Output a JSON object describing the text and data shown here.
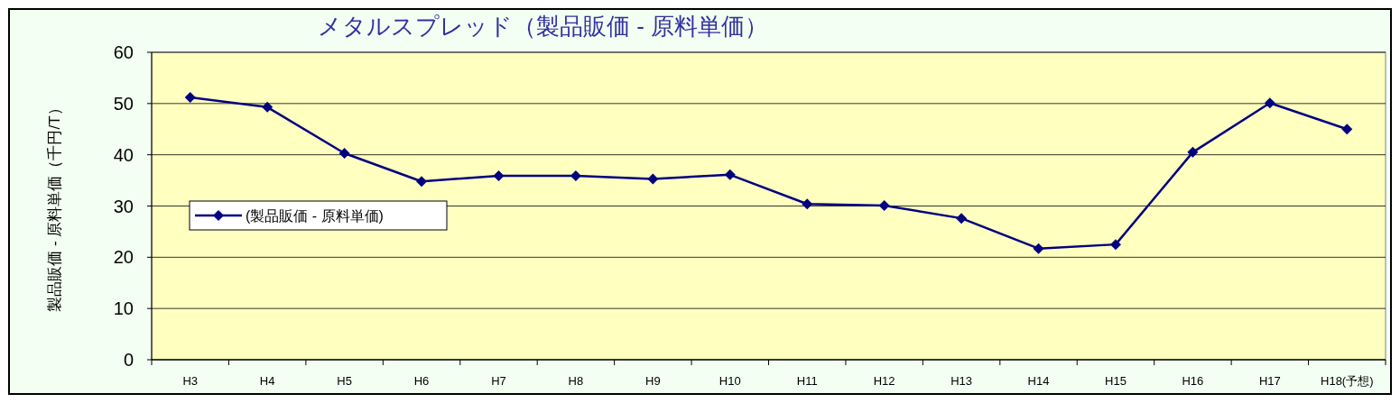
{
  "chart_data": {
    "type": "line",
    "title": "メタルスプレッド（製品販価 - 原料単価）",
    "ylabel": "製品販価 - 原料単価（千円/T）",
    "categories": [
      "H3",
      "H4",
      "H5",
      "H6",
      "H7",
      "H8",
      "H9",
      "H10",
      "H11",
      "H12",
      "H13",
      "H14",
      "H15",
      "H16",
      "H17",
      "H18(予想)"
    ],
    "series": [
      {
        "name": "(製品販価 - 原料単価)",
        "color": "#000080",
        "values": [
          51.2,
          49.3,
          40.3,
          34.8,
          35.9,
          35.9,
          35.3,
          36.1,
          30.4,
          30.1,
          27.6,
          21.7,
          22.5,
          40.5,
          50.1,
          45.0
        ]
      }
    ],
    "ylim": [
      0,
      60
    ],
    "yticks": [
      0,
      10,
      20,
      30,
      40,
      50,
      60
    ],
    "grid": "y",
    "legend": "left",
    "marker": "diamond",
    "line_style": "solid"
  }
}
